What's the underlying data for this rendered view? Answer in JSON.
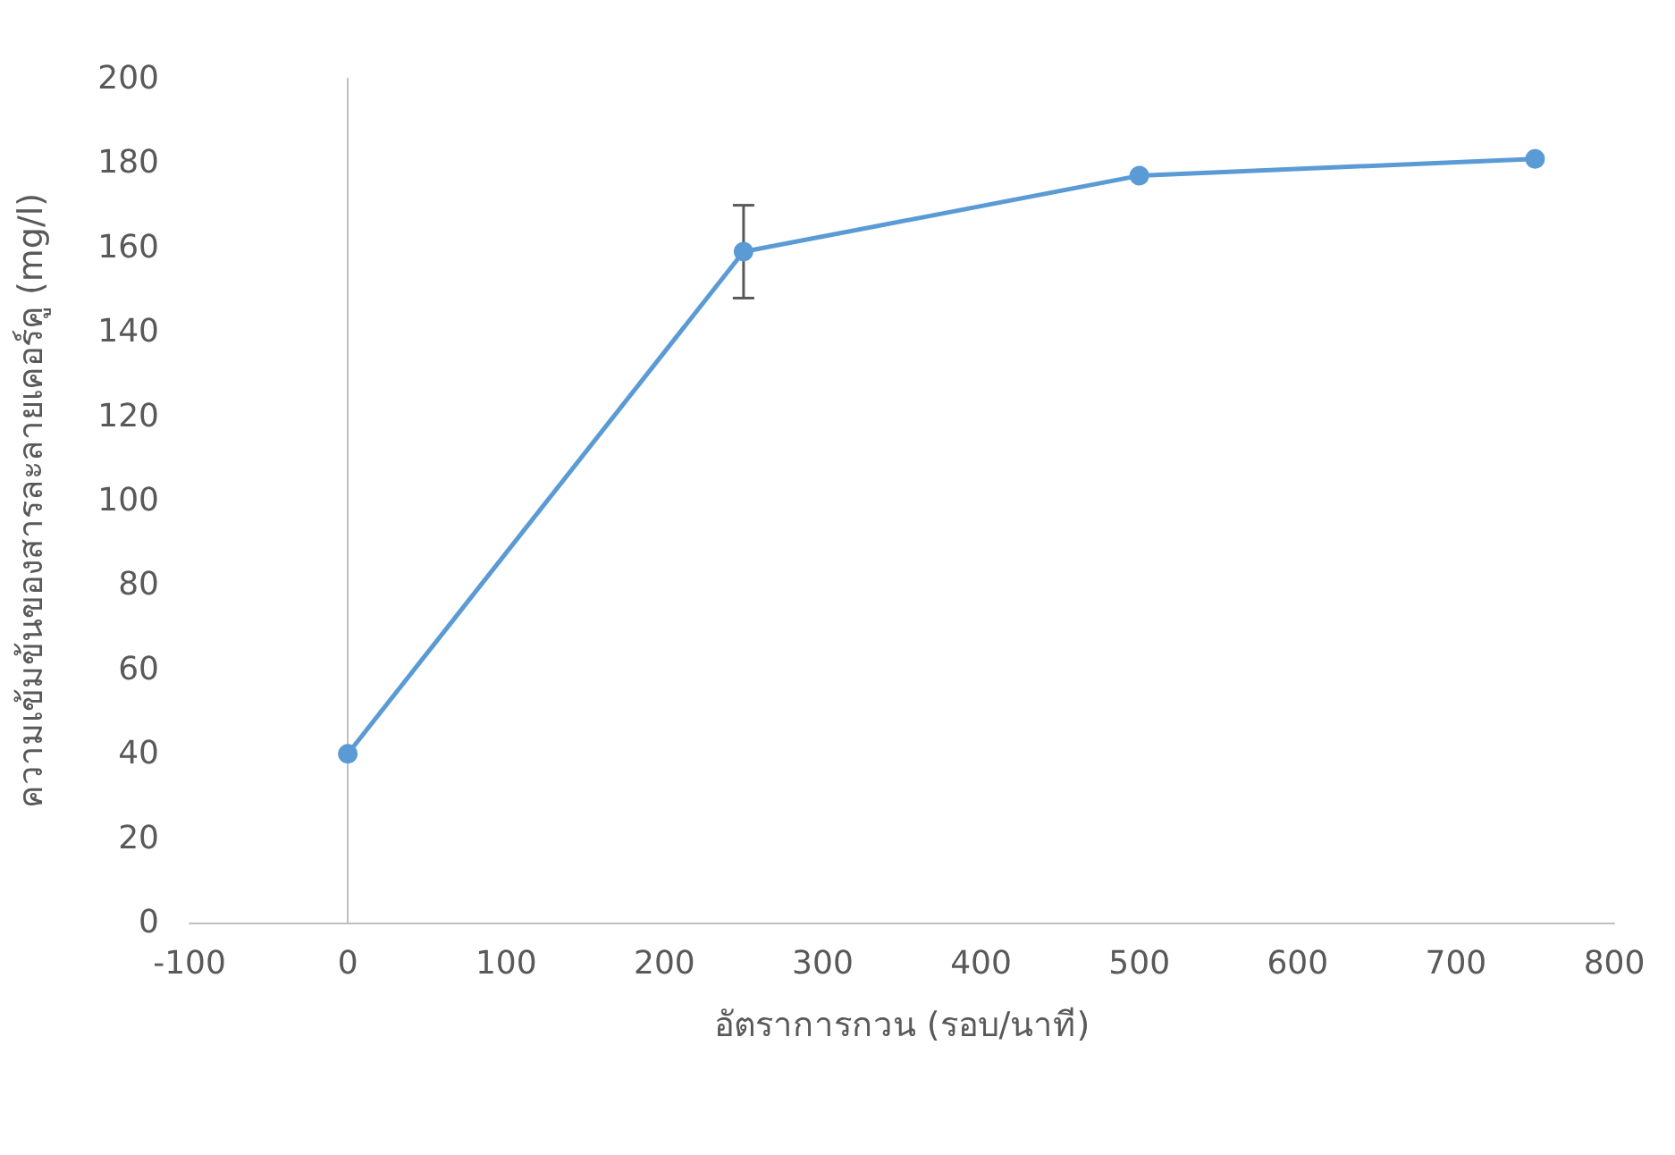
{
  "chart_data": {
    "type": "line",
    "xlabel": "อัตราการกวน (รอบ/นาที)",
    "ylabel": "ความเข้มข้นของสารละลายเคอร์คู (mg/l)",
    "x": [
      0,
      250,
      500,
      750
    ],
    "series": [
      {
        "color": "#5b9bd5",
        "values": [
          40,
          159,
          177,
          181
        ],
        "errors": [
          null,
          11,
          null,
          null
        ]
      }
    ],
    "xlim": [
      -100,
      800
    ],
    "xticks": [
      -100,
      0,
      100,
      200,
      300,
      400,
      500,
      600,
      700,
      800
    ],
    "ylim": [
      0,
      200
    ],
    "yticks": [
      0,
      20,
      40,
      60,
      80,
      100,
      120,
      140,
      160,
      180,
      200
    ],
    "marker": "circle",
    "line_style": "solid"
  }
}
